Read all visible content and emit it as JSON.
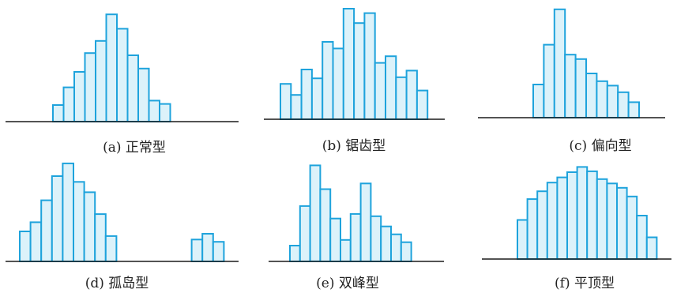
{
  "colors": {
    "bar_fill": "#dcf2fa",
    "bar_stroke": "#1ea3dc",
    "baseline": "#1a1a1a",
    "text": "#222222"
  },
  "chart_data": [
    {
      "type": "bar",
      "caption": "(a) 正常型",
      "values": [
        1.5,
        3.1,
        4.5,
        6.2,
        7.3,
        9.7,
        8.4,
        6.0,
        4.8,
        1.9,
        1.6
      ]
    },
    {
      "type": "bar",
      "caption": "(b) 锯齿型",
      "values": [
        3.2,
        2.2,
        4.5,
        3.7,
        7.0,
        6.4,
        10.0,
        8.7,
        9.6,
        5.1,
        5.7,
        3.8,
        4.4,
        2.6
      ]
    },
    {
      "type": "bar",
      "caption": "(c) 偏向型",
      "values": [
        3.0,
        6.6,
        9.8,
        5.7,
        5.3,
        4.0,
        3.3,
        2.9,
        2.3,
        1.4
      ]
    },
    {
      "type": "bar",
      "caption": "(d) 孤岛型",
      "values": [
        2.6,
        3.4,
        5.3,
        7.4,
        8.5,
        6.9,
        6.0,
        4.1,
        2.2,
        0,
        0,
        0,
        0,
        0,
        0,
        0,
        1.9,
        2.4,
        1.7
      ]
    },
    {
      "type": "bar",
      "caption": "(e) 双峰型",
      "values": [
        1.4,
        4.9,
        8.5,
        6.4,
        3.8,
        1.9,
        4.2,
        6.9,
        4.0,
        3.1,
        2.4,
        1.7
      ]
    },
    {
      "type": "bar",
      "caption": "(f) 平顶型",
      "values": [
        4.5,
        6.9,
        7.8,
        8.8,
        9.4,
        10.0,
        10.6,
        10.1,
        9.2,
        8.7,
        8.2,
        7.2,
        5.0,
        2.5
      ]
    }
  ]
}
